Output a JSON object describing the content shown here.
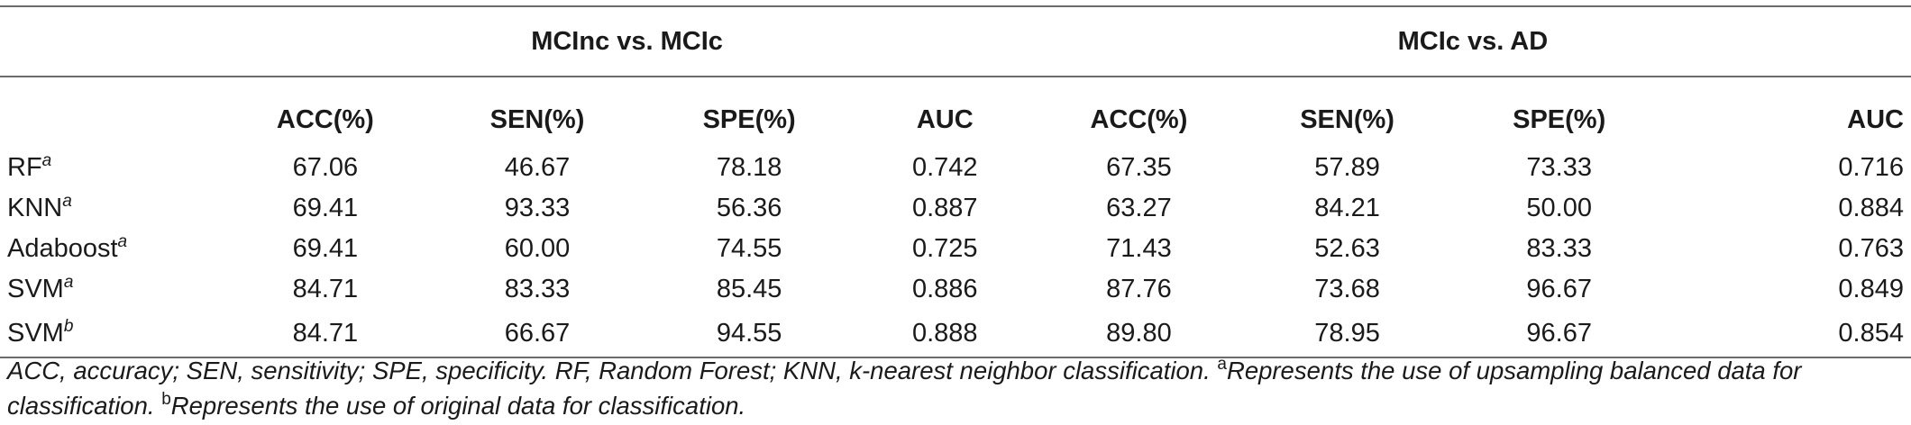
{
  "groups": [
    "MCInc vs. MCIc",
    "MCIc vs. AD"
  ],
  "columns": [
    "ACC(%)",
    "SEN(%)",
    "SPE(%)",
    "AUC",
    "ACC(%)",
    "SEN(%)",
    "SPE(%)",
    "AUC"
  ],
  "rows": [
    {
      "label": "RF",
      "sup": "a",
      "values": [
        "67.06",
        "46.67",
        "78.18",
        "0.742",
        "67.35",
        "57.89",
        "73.33",
        "0.716"
      ]
    },
    {
      "label": "KNN",
      "sup": "a",
      "values": [
        "69.41",
        "93.33",
        "56.36",
        "0.887",
        "63.27",
        "84.21",
        "50.00",
        "0.884"
      ]
    },
    {
      "label": "Adaboost",
      "sup": "a",
      "values": [
        "69.41",
        "60.00",
        "74.55",
        "0.725",
        "71.43",
        "52.63",
        "83.33",
        "0.763"
      ]
    },
    {
      "label": "SVM",
      "sup": "a",
      "values": [
        "84.71",
        "83.33",
        "85.45",
        "0.886",
        "87.76",
        "73.68",
        "96.67",
        "0.849"
      ]
    },
    {
      "label": "SVM",
      "sup": "b",
      "values": [
        "84.71",
        "66.67",
        "94.55",
        "0.888",
        "89.80",
        "78.95",
        "96.67",
        "0.854"
      ]
    }
  ],
  "footnote": {
    "main": "ACC, accuracy; SEN, sensitivity; SPE, specificity. RF, Random Forest; KNN, k-nearest neighbor classification. ",
    "a_mark": "a",
    "a_text": "Represents the use of upsampling balanced data for classification. ",
    "b_mark": "b",
    "b_text": "Represents the use of original data for classification."
  }
}
